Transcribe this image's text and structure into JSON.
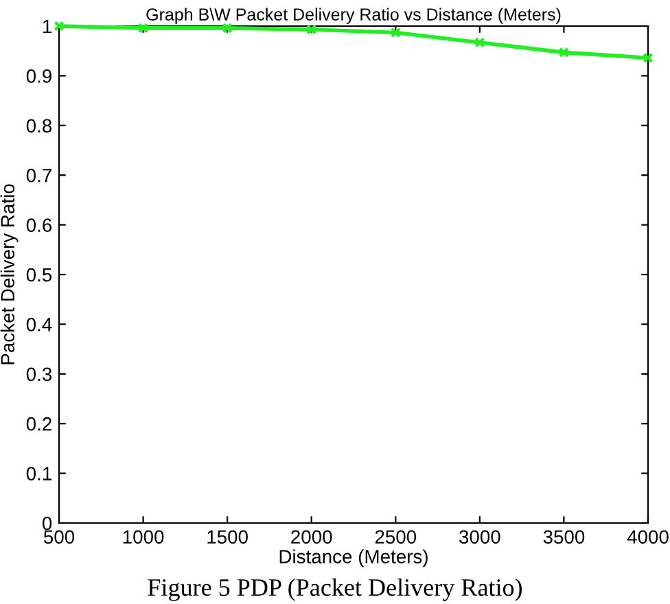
{
  "chart_data": {
    "type": "line",
    "title": "Graph B\\W Packet Delivery Ratio vs Distance (Meters)",
    "xlabel": "Distance (Meters)",
    "ylabel": "Packet Delivery Ratio",
    "x": [
      500,
      1000,
      1500,
      2000,
      2500,
      3000,
      3500,
      4000
    ],
    "series": [
      {
        "color": "#22ee22",
        "values": [
          1.0,
          0.996,
          0.996,
          0.993,
          0.987,
          0.967,
          0.947,
          0.936
        ]
      }
    ],
    "xlim": [
      500,
      4000
    ],
    "xticks": [
      500,
      1000,
      1500,
      2000,
      2500,
      3000,
      3500,
      4000
    ],
    "ylim": [
      0,
      1
    ],
    "yticks": [
      0,
      0.1,
      0.2,
      0.3,
      0.4,
      0.5,
      0.6,
      0.7,
      0.8,
      0.9,
      1
    ],
    "marker": "cross",
    "line_style": "solid",
    "grid": false,
    "legend": false,
    "annotations": [
      "Figure 5 PDP (Packet Delivery Ratio)"
    ]
  }
}
